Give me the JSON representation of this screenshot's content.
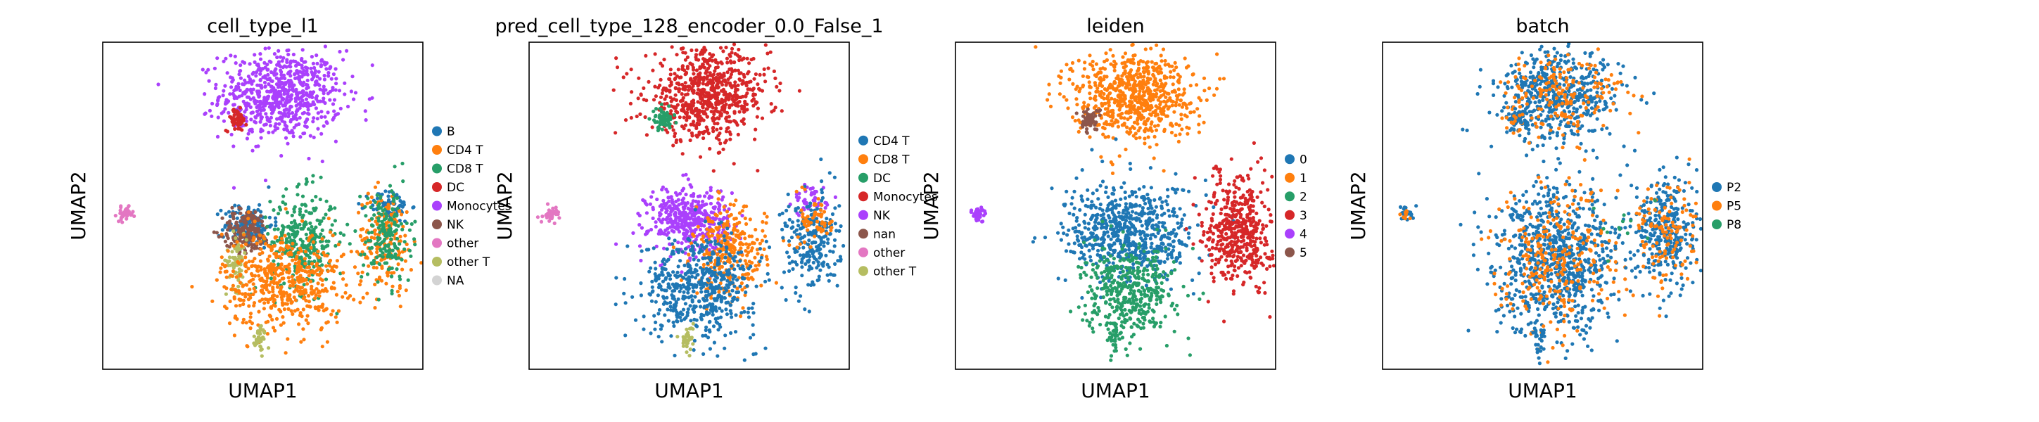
{
  "chart_data": [
    {
      "type": "scatter",
      "title": "cell_type_l1",
      "xlabel": "UMAP1",
      "ylabel": "UMAP2",
      "grid": false,
      "legend": "right",
      "categories": [
        "B",
        "CD4 T",
        "CD8 T",
        "DC",
        "Monocytes",
        "NK",
        "other",
        "other T",
        "NA"
      ],
      "colors": [
        "#1f77b4",
        "#ff7f0e",
        "#279e68",
        "#d62728",
        "#aa40fc",
        "#8c564b",
        "#e377c2",
        "#b5bd61",
        "#d3d3d3"
      ],
      "clusters": [
        {
          "category": "Monocytes",
          "x": 3.2,
          "y": 8.3,
          "sx": 1.5,
          "sy": 0.8,
          "n": 700
        },
        {
          "category": "DC",
          "x": 1.0,
          "y": 7.4,
          "sx": 0.25,
          "sy": 0.2,
          "n": 60
        },
        {
          "category": "other",
          "x": -4.5,
          "y": 4.0,
          "sx": 0.2,
          "sy": 0.12,
          "n": 35
        },
        {
          "category": "B",
          "x": 1.6,
          "y": 3.6,
          "sx": 0.6,
          "sy": 0.4,
          "n": 140
        },
        {
          "category": "B",
          "x": 8.6,
          "y": 4.3,
          "sx": 0.5,
          "sy": 0.3,
          "n": 70
        },
        {
          "category": "NK",
          "x": 1.5,
          "y": 3.4,
          "sx": 0.6,
          "sy": 0.4,
          "n": 160
        },
        {
          "category": "other T",
          "x": 1.0,
          "y": 2.3,
          "sx": 0.25,
          "sy": 0.5,
          "n": 70
        },
        {
          "category": "CD8 T",
          "x": 4.3,
          "y": 3.0,
          "sx": 0.8,
          "sy": 0.9,
          "n": 320
        },
        {
          "category": "CD4 T",
          "x": 3.3,
          "y": 1.6,
          "sx": 1.5,
          "sy": 0.9,
          "n": 520
        },
        {
          "category": "CD4 T",
          "x": 8.3,
          "y": 3.0,
          "sx": 0.7,
          "sy": 0.9,
          "n": 180
        },
        {
          "category": "CD8 T",
          "x": 8.4,
          "y": 3.2,
          "sx": 0.6,
          "sy": 0.9,
          "n": 170
        },
        {
          "category": "other T",
          "x": 2.2,
          "y": -0.5,
          "sx": 0.15,
          "sy": 0.25,
          "n": 35
        }
      ]
    },
    {
      "type": "scatter",
      "title": "pred_cell_type_128_encoder_0.0_False_1",
      "xlabel": "UMAP1",
      "ylabel": "UMAP2",
      "grid": false,
      "legend": "right",
      "categories": [
        "CD4 T",
        "CD8 T",
        "DC",
        "Monocytes",
        "NK",
        "nan",
        "other",
        "other T"
      ],
      "colors": [
        "#1f77b4",
        "#ff7f0e",
        "#279e68",
        "#d62728",
        "#aa40fc",
        "#8c564b",
        "#e377c2",
        "#b5bd61"
      ],
      "clusters": [
        {
          "category": "Monocytes",
          "x": 3.2,
          "y": 8.3,
          "sx": 1.5,
          "sy": 0.8,
          "n": 700
        },
        {
          "category": "DC",
          "x": 1.0,
          "y": 7.4,
          "sx": 0.25,
          "sy": 0.2,
          "n": 60
        },
        {
          "category": "other",
          "x": -4.5,
          "y": 4.0,
          "sx": 0.2,
          "sy": 0.12,
          "n": 35
        },
        {
          "category": "NK",
          "x": 2.3,
          "y": 3.8,
          "sx": 1.0,
          "sy": 0.6,
          "n": 420
        },
        {
          "category": "NK",
          "x": 8.3,
          "y": 4.5,
          "sx": 0.4,
          "sy": 0.3,
          "n": 50
        },
        {
          "category": "CD8 T",
          "x": 4.3,
          "y": 2.6,
          "sx": 0.9,
          "sy": 0.8,
          "n": 300
        },
        {
          "category": "CD4 T",
          "x": 2.8,
          "y": 1.4,
          "sx": 1.4,
          "sy": 0.9,
          "n": 520
        },
        {
          "category": "CD4 T",
          "x": 8.3,
          "y": 3.0,
          "sx": 0.7,
          "sy": 0.9,
          "n": 240
        },
        {
          "category": "CD8 T",
          "x": 8.6,
          "y": 3.8,
          "sx": 0.4,
          "sy": 0.5,
          "n": 60
        },
        {
          "category": "other T",
          "x": 2.2,
          "y": -0.5,
          "sx": 0.15,
          "sy": 0.25,
          "n": 35
        }
      ]
    },
    {
      "type": "scatter",
      "title": "leiden",
      "xlabel": "UMAP1",
      "ylabel": "UMAP2",
      "grid": false,
      "legend": "right",
      "categories": [
        "0",
        "1",
        "2",
        "3",
        "4",
        "5"
      ],
      "colors": [
        "#1f77b4",
        "#ff7f0e",
        "#279e68",
        "#d62728",
        "#aa40fc",
        "#8c564b"
      ],
      "clusters": [
        {
          "category": "1",
          "x": 3.2,
          "y": 8.3,
          "sx": 1.5,
          "sy": 0.8,
          "n": 700
        },
        {
          "category": "5",
          "x": 1.0,
          "y": 7.4,
          "sx": 0.25,
          "sy": 0.2,
          "n": 60
        },
        {
          "category": "4",
          "x": -4.5,
          "y": 4.0,
          "sx": 0.2,
          "sy": 0.12,
          "n": 35
        },
        {
          "category": "0",
          "x": 3.0,
          "y": 3.3,
          "sx": 1.6,
          "sy": 0.9,
          "n": 650
        },
        {
          "category": "2",
          "x": 3.0,
          "y": 1.2,
          "sx": 1.1,
          "sy": 0.8,
          "n": 420
        },
        {
          "category": "2",
          "x": 2.2,
          "y": -0.5,
          "sx": 0.15,
          "sy": 0.25,
          "n": 35
        },
        {
          "category": "3",
          "x": 8.4,
          "y": 3.4,
          "sx": 0.8,
          "sy": 1.0,
          "n": 480
        }
      ]
    },
    {
      "type": "scatter",
      "title": "batch",
      "xlabel": "UMAP1",
      "ylabel": "UMAP2",
      "grid": false,
      "legend": "right",
      "categories": [
        "P2",
        "P5",
        "P8"
      ],
      "colors": [
        "#1f77b4",
        "#ff7f0e",
        "#279e68"
      ],
      "clusters": [
        {
          "category": "P2",
          "x": 3.2,
          "y": 8.3,
          "sx": 1.5,
          "sy": 0.8,
          "n": 520
        },
        {
          "category": "P5",
          "x": 3.2,
          "y": 8.3,
          "sx": 1.5,
          "sy": 0.8,
          "n": 180
        },
        {
          "category": "P2",
          "x": 1.0,
          "y": 7.4,
          "sx": 0.25,
          "sy": 0.2,
          "n": 45
        },
        {
          "category": "P5",
          "x": 1.0,
          "y": 7.4,
          "sx": 0.25,
          "sy": 0.2,
          "n": 15
        },
        {
          "category": "P2",
          "x": -4.5,
          "y": 4.0,
          "sx": 0.2,
          "sy": 0.12,
          "n": 25
        },
        {
          "category": "P5",
          "x": -4.5,
          "y": 4.0,
          "sx": 0.2,
          "sy": 0.12,
          "n": 10
        },
        {
          "category": "P2",
          "x": 3.0,
          "y": 2.3,
          "sx": 1.5,
          "sy": 1.3,
          "n": 800
        },
        {
          "category": "P5",
          "x": 3.0,
          "y": 2.3,
          "sx": 1.5,
          "sy": 1.3,
          "n": 280
        },
        {
          "category": "P2",
          "x": 8.4,
          "y": 3.4,
          "sx": 0.8,
          "sy": 1.0,
          "n": 330
        },
        {
          "category": "P5",
          "x": 8.4,
          "y": 3.4,
          "sx": 0.8,
          "sy": 1.0,
          "n": 120
        },
        {
          "category": "P8",
          "x": 6.0,
          "y": 3.5,
          "sx": 1.0,
          "sy": 0.6,
          "n": 12
        },
        {
          "category": "P2",
          "x": 2.2,
          "y": -0.5,
          "sx": 0.15,
          "sy": 0.25,
          "n": 25
        }
      ]
    }
  ]
}
